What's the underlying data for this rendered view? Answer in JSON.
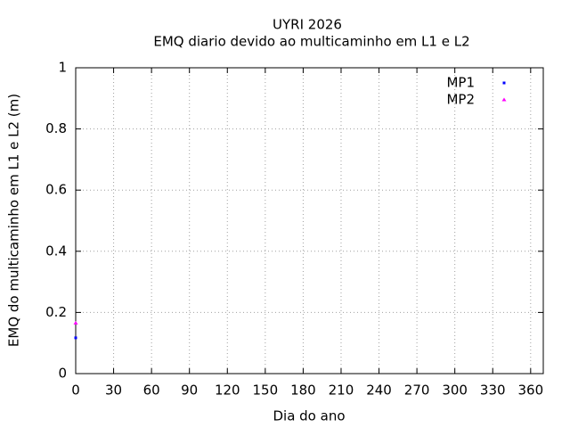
{
  "chart_data": {
    "type": "scatter",
    "title": "UYRI 2026",
    "subtitle": "EMQ diario devido ao multicaminho em L1 e L2",
    "x_label": "Dia do ano",
    "y_label": "EMQ do multicaminho em L1 e L2 (m)",
    "xlim": [
      0,
      370
    ],
    "xticks": [
      0,
      30,
      60,
      90,
      120,
      150,
      180,
      210,
      240,
      270,
      300,
      330,
      360
    ],
    "ylim": [
      0,
      1
    ],
    "yticks": [
      0,
      0.2,
      0.4,
      0.6,
      0.8,
      1
    ],
    "grid": true,
    "legend": "top-right",
    "series": [
      {
        "name": "MP1",
        "color": "#0000ff",
        "marker": "point",
        "x": [
          0
        ],
        "values": [
          0.117
        ]
      },
      {
        "name": "MP2",
        "color": "#ff00ff",
        "marker": "triangle",
        "x": [
          0
        ],
        "values": [
          0.165
        ]
      }
    ]
  }
}
